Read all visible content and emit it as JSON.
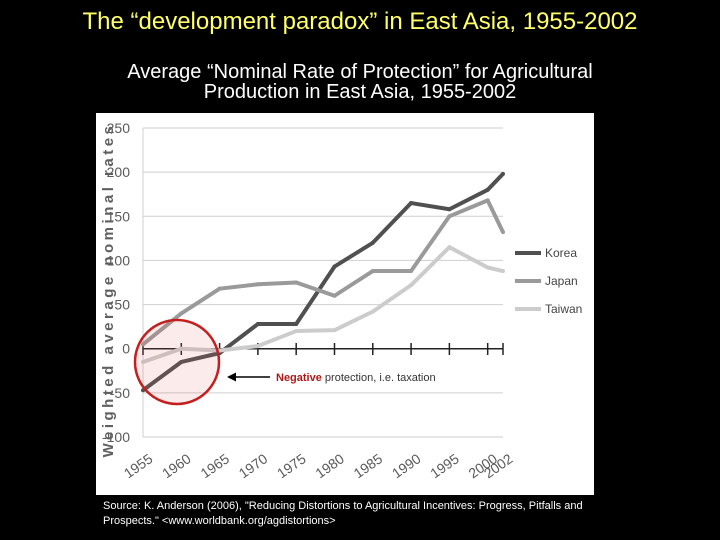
{
  "slide_title": "The “development paradox” in East Asia, 1955-2002",
  "chart_title_line1": "Average “Nominal Rate of Protection” for Agricultural",
  "chart_title_line2": "Production in East Asia, 1955-2002",
  "chart_data": {
    "type": "line",
    "ylabel": "Weighted average nominal rates",
    "ylim": [
      -100,
      250
    ],
    "yticks": [
      250,
      200,
      150,
      100,
      50,
      0,
      -50,
      -100
    ],
    "ytick_labels": [
      "250",
      "200",
      "150",
      "100",
      "50",
      "0",
      "-50",
      "-100"
    ],
    "x": [
      1955,
      1960,
      1965,
      1970,
      1975,
      1980,
      1985,
      1990,
      1995,
      2000,
      2002
    ],
    "xtick_labels": [
      "1955",
      "1960",
      "1965",
      "1970",
      "1975",
      "1980",
      "1985",
      "1990",
      "1995",
      "2000",
      "2002"
    ],
    "grid": true,
    "legend_position": "right",
    "series": [
      {
        "name": "Korea",
        "color": "#505050",
        "values": [
          -47,
          -15,
          -5,
          28,
          28,
          93,
          120,
          165,
          158,
          180,
          198
        ]
      },
      {
        "name": "Japan",
        "color": "#9a9a9a",
        "values": [
          5,
          40,
          68,
          73,
          75,
          60,
          88,
          88,
          150,
          168,
          132
        ]
      },
      {
        "name": "Taiwan",
        "color": "#cccccc",
        "values": [
          -15,
          0,
          -2,
          3,
          20,
          21,
          42,
          72,
          115,
          92,
          88
        ]
      }
    ],
    "annotation": {
      "bold": "Negative",
      "rest": " protection, i.e. taxation"
    }
  },
  "source_text": "Source: K. Anderson (2006), \"Reducing Distortions to Agricultural Incentives: Progress, Pitfalls and Prospects.\" <www.worldbank.org/agdistortions>"
}
